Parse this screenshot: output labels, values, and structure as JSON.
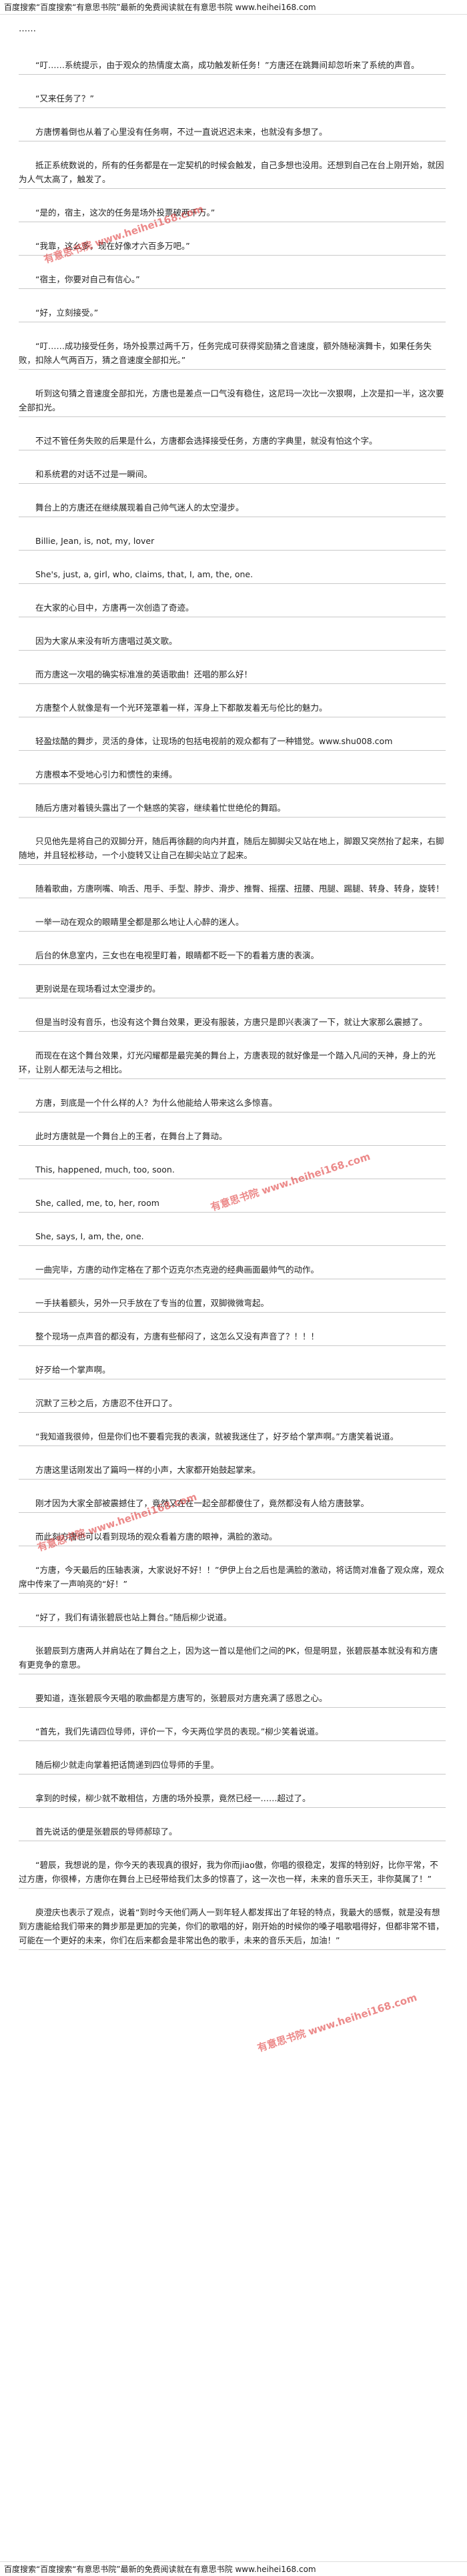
{
  "header": "百度搜索“百度搜索“有意思书院”最新的免费阅读就在有意思书院 www.heihei168.com",
  "ellipsis": "……",
  "paragraphs": [
    "“叮……系统提示，由于观众的热情度太高，成功触发新任务！”方唐还在跳舞间却忽听来了系统的声音。",
    "“又来任务了？”",
    "方唐愣着倒也从着了心里没有任务啊，不过一直说迟迟未来，也就没有多想了。",
    "抵正系统数说的，所有的任务都是在一定契机的时候会触发，自己多想也没用。还想到自己在台上刚开始，就因为人气太高了，触发了。",
    "“是的，宿主，这次的任务是场外投票破两千万。”",
    "“我靠，这么多，现在好像才六百多万吧。”",
    "“宿主，你要对自己有信心。”",
    "“好，立刻接受。”",
    "“叮……成功接受任务，场外投票过两千万，任务完成可获得奖励猜之音速度，额外随秘演舞卡，如果任务失败，扣除人气两百万，猜之音速度全部扣光。”",
    "听到这句猜之音速度全部扣光，方唐也是差点一口气没有稳住，这尼玛一次比一次狠啊，上次是扣一半，这次要全部扣光。",
    "不过不管任务失败的后果是什么，方唐都会选择接受任务，方唐的字典里，就没有怕这个字。",
    "和系统君的对话不过是一瞬间。",
    "舞台上的方唐还在继续展现着自己帅气迷人的太空漫步。",
    "Billie, Jean, is, not, my, lover",
    "She's, just, a, girl, who, claims, that, I, am, the, one.",
    "在大家的心目中，方唐再一次创造了奇迹。",
    "因为大家从来没有听方唐唱过英文歌。",
    "而方唐这一次唱的确实标准准的英语歌曲！还唱的那么好！",
    "方唐整个人就像是有一个光环笼罩着一样，浑身上下都散发着无与伦比的魅力。",
    "轻盈炫酷的舞步，灵活的身体，让现场的包括电视前的观众都有了一种错觉。www.shu008.com",
    "方唐根本不受地心引力和惯性的束缚。",
    "随后方唐对着镜头露出了一个魅惑的笑容，继续着忙世绝伦的舞蹈。",
    "只见他先是将自己的双脚分开，随后再徐翻的向内并直，随后左脚脚尖又站在地上，脚跟又突然抬了起来，右脚随地，并且轻松移动，一个小旋转又让自己在脚尖站立了起来。",
    "随着歌曲，方唐咧嘴、响舌、甩手、手型、脖步、滑步、推臀、摇摆、扭腰、甩腿、踢腿、转身、转身，旋转！",
    "一举一动在观众的眼睛里全都是那么地让人心醉的迷人。",
    "后台的休息室内，三女也在电视里盯着，眼睛都不眨一下的看着方唐的表演。",
    "更别说是在现场看过太空漫步的。",
    "但是当时没有音乐，也没有这个舞台效果，更没有服装，方唐只是即兴表演了一下，就让大家那么震撼了。",
    "而现在在这个舞台效果，灯光闪耀都是最完美的舞台上，方唐表现的就好像是一个踏入凡间的天神，身上的光环，让别人都无法与之相比。",
    "方唐，到底是一个什么样的人？为什么他能给人带来这么多惊喜。",
    "此时方唐就是一个舞台上的王者，在舞台上了舞动。",
    "This, happened, much, too, soon.",
    "She, called, me, to, her, room",
    "She, says, I, am, the, one.",
    "一曲完毕，方唐的动作定格在了那个迈克尔杰克逊的经典画面最帅气的动作。",
    "一手扶着额头，另外一只手放在了专当的位置，双脚微微弯起。",
    "整个现场一点声音的都没有，方唐有些郁闷了，这怎么又没有声音了？！！！",
    "好歹给一个掌声啊。",
    "沉默了三秒之后，方唐忍不住开口了。",
    "“我知道我很帅，但是你们也不要看完我的表演，就被我迷住了，好歹给个掌声啊。”方唐笑着说道。",
    "方唐这里话刚发出了篇吗一样的小声，大家都开始鼓起掌来。",
    "刚才因为大家全部被震撼住了，竟然又在在一起全部都傻住了，竟然都没有人给方唐鼓掌。",
    "而此刻方唐也可以看到现场的观众看着方唐的眼神，满脸的激动。",
    "“方唐，今天最后的压轴表演，大家说好不好！！”伊伊上台之后也是满脸的激动，将话筒对准备了观众席，观众席中传来了一声响亮的“好！”",
    "“好了，我们有请张碧辰也站上舞台。”随后柳少说道。",
    "张碧辰到方唐两人并肩站在了舞台之上，因为这一首以是他们之间的PK，但是明显，张碧辰基本就没有和方唐有更竞争的意思。",
    "要知道，连张碧辰今天唱的歌曲都是方唐写的，张碧辰对方唐充满了感恩之心。",
    "“首先，我们先请四位导师，评价一下，今天两位学员的表现。”柳少笑着说道。",
    "随后柳少就走向掌着把话筒递到四位导师的手里。",
    "拿到的时候，柳少就不敢相信，方唐的场外投票，竟然已经一……超过了。",
    "首先说话的便是张碧辰的导师郝琼了。",
    "“碧辰，我想说的是，你今天的表现真的很好，我为你而jiao傲，你唱的很稳定，发挥的特别好，比你平常，不过方唐，你很棒，方唐你在舞台上已经带给我们太多的惊喜了，这一次也一样，未来的音乐天王，非你莫属了！”",
    "庾澄庆也表示了观点，说着“到时今天他们两人一到年轻人都发挥出了年轻的特点，我最大的感慨，就是没有想到方唐能给我们带来的舞步那是更加的完美，你们的歌唱的好，刚开始的时候你的嗓子唱歌唱得好，但都非常不错，可能在一个更好的未来，你们在后来都会是非常出色的歌手，未来的音乐天后，加油！”"
  ],
  "watermarks": [
    "有意思书院 www.heihei168.com",
    "有意思书院 www.heihei168.com",
    "有意思书院 www.heihei168.com",
    "有意思书院 www.heihei168.com"
  ],
  "footer": "百度搜索“百度搜索“有意思书院”最新的免费阅读就在有意思书院 www.heihei168.com"
}
